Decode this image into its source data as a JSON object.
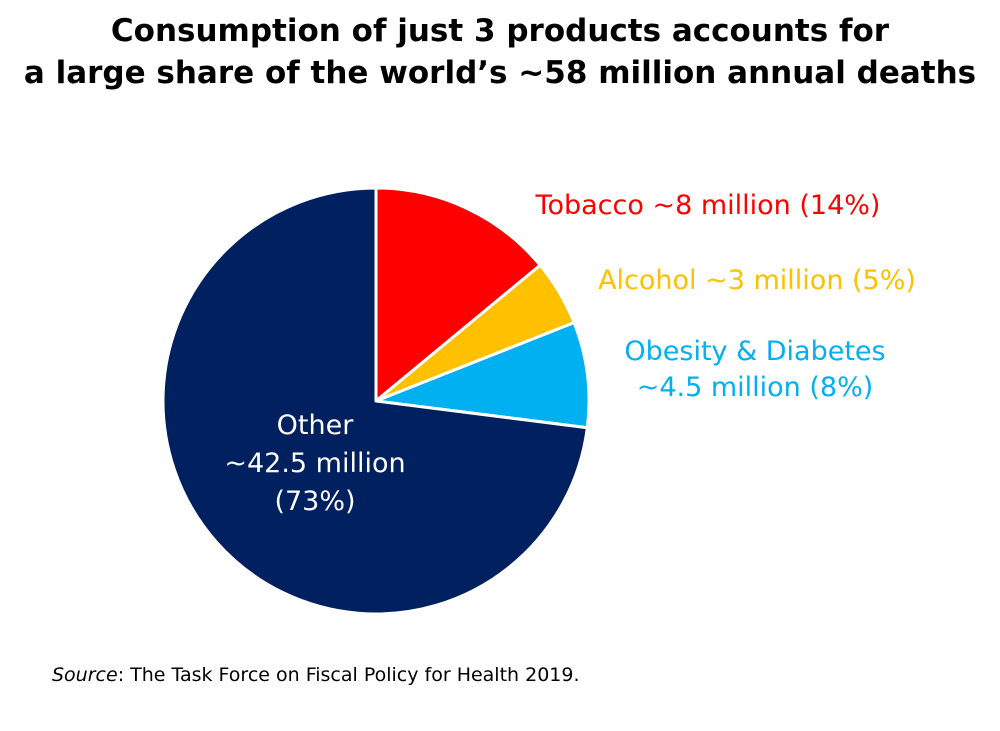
{
  "title_line1": "Consumption of just 3 products accounts for",
  "title_line2": "a large share of the world’s ~58 million annual deaths",
  "source": {
    "label": "Source",
    "text": ": The Task Force on Fiscal Policy for Health 2019."
  },
  "chart_data": {
    "type": "pie",
    "slices": [
      {
        "name": "Tobacco",
        "value": 14,
        "color": "#ff0000",
        "label_lines": [
          "Tobacco  ~8 million (14%)"
        ]
      },
      {
        "name": "Alcohol",
        "value": 5,
        "color": "#ffc000",
        "label_lines": [
          "Alcohol  ~3 million (5%)"
        ]
      },
      {
        "name": "Obesity & Diabetes",
        "value": 8,
        "color": "#00b0f0",
        "label_lines": [
          "Obesity & Diabetes",
          "~4.5 million (8%)"
        ]
      },
      {
        "name": "Other",
        "value": 73,
        "color": "#002060",
        "label_lines": [
          "Other",
          "~42.5 million",
          "(73%)"
        ]
      }
    ],
    "start_angle_deg": 0,
    "direction": "clockwise"
  }
}
